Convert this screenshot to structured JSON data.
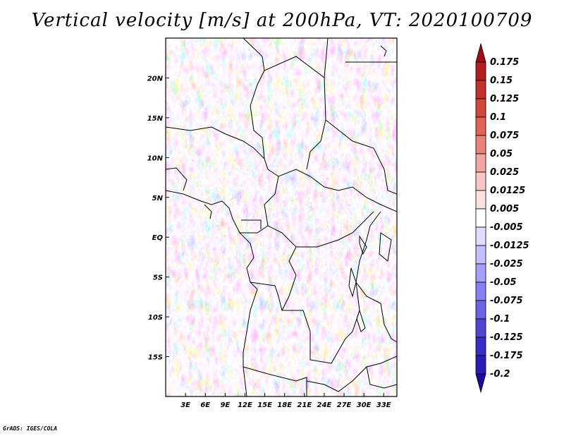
{
  "title": "Vertical velocity [m/s] at 200hPa, VT: 2020100709",
  "credit": "GrADS: IGES/COLA",
  "chart_data": {
    "type": "heatmap",
    "variable": "Vertical velocity",
    "units": "m/s",
    "level": "200hPa",
    "valid_time": "2020100709",
    "lon_range": [
      0,
      35
    ],
    "lat_range": [
      -20,
      25
    ],
    "lon_ticks": [
      "3E",
      "6E",
      "9E",
      "12E",
      "15E",
      "18E",
      "21E",
      "24E",
      "27E",
      "30E",
      "33E"
    ],
    "lon_tick_values": [
      3,
      6,
      9,
      12,
      15,
      18,
      21,
      24,
      27,
      30,
      33
    ],
    "lat_ticks": [
      "20N",
      "15N",
      "10N",
      "5N",
      "EQ",
      "5S",
      "10S",
      "15S"
    ],
    "lat_tick_values": [
      20,
      15,
      10,
      5,
      0,
      -5,
      -10,
      -15
    ],
    "colorbar": {
      "labels": [
        "0.175",
        "0.15",
        "0.125",
        "0.1",
        "0.075",
        "0.05",
        "0.025",
        "0.0125",
        "0.005",
        "-0.005",
        "-0.0125",
        "-0.025",
        "-0.05",
        "-0.075",
        "-0.1",
        "-0.125",
        "-0.175",
        "-0.2"
      ],
      "colors": [
        "#a00d1a",
        "#b11e22",
        "#c3312f",
        "#d3463b",
        "#df6455",
        "#e8837a",
        "#f0a6a1",
        "#f7c6c4",
        "#fbe1df",
        "#ffffff",
        "#dfdcff",
        "#c3beff",
        "#a59efb",
        "#8680f2",
        "#6a63e3",
        "#4f47d4",
        "#3a2fc4",
        "#2a1db6",
        "#1f0aa0"
      ]
    }
  }
}
